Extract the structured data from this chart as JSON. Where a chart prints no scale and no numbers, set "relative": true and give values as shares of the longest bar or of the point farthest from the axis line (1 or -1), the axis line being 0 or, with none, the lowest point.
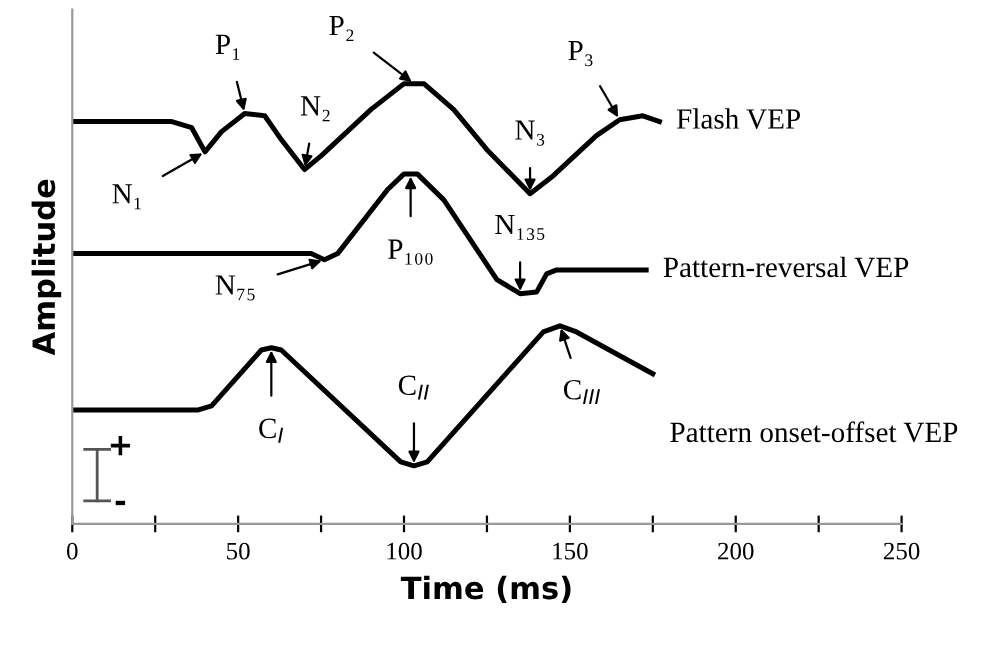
{
  "chart_data": {
    "type": "line",
    "relative": true,
    "xlabel": "Time (ms)",
    "ylabel": "Amplitude",
    "xlim": [
      0,
      250
    ],
    "xticks": [
      0,
      {
        "value": 25,
        "label": null
      },
      50,
      {
        "value": 75,
        "label": null
      },
      100,
      {
        "value": 125,
        "label": null
      },
      150,
      {
        "value": 175,
        "label": null
      },
      200,
      {
        "value": 225,
        "label": null
      },
      250
    ],
    "grid": false,
    "legend": "right",
    "marker": "none",
    "line_style": "solid",
    "series": [
      {
        "name": "Flash VEP",
        "color": "#000000",
        "x": [
          0,
          30,
          36,
          40,
          45,
          52,
          58,
          63,
          70,
          75,
          90,
          100,
          106,
          115,
          125,
          138,
          145,
          158,
          165,
          172,
          177
        ],
        "values": [
          0.914,
          0.914,
          0.9,
          0.845,
          0.891,
          0.932,
          0.927,
          0.873,
          0.805,
          0.836,
          0.941,
          1.0,
          1.0,
          0.941,
          0.85,
          0.75,
          0.791,
          0.882,
          0.918,
          0.927,
          0.914
        ]
      },
      {
        "name": "Pattern-reversal VEP",
        "color": "#000000",
        "x": [
          0,
          72,
          76,
          80,
          95,
          100,
          104,
          112,
          128,
          135,
          140,
          143,
          146,
          173
        ],
        "values": [
          0.614,
          0.614,
          0.6,
          0.614,
          0.759,
          0.795,
          0.795,
          0.736,
          0.555,
          0.523,
          0.527,
          0.568,
          0.577,
          0.577
        ]
      },
      {
        "name": "Pattern onset-offset VEP",
        "color": "#000000",
        "x": [
          0,
          38,
          42,
          57,
          60,
          63,
          99,
          103,
          107,
          142,
          147,
          152,
          175
        ],
        "values": [
          0.259,
          0.259,
          0.268,
          0.395,
          0.4,
          0.395,
          0.141,
          0.132,
          0.141,
          0.436,
          0.45,
          0.436,
          0.341
        ]
      }
    ],
    "annotations": [
      {
        "text": "N₁",
        "x": 40,
        "y": 0.845
      },
      {
        "text": "P₁",
        "x": 52,
        "y": 0.932
      },
      {
        "text": "N₂",
        "x": 70,
        "y": 0.805
      },
      {
        "text": "P₂",
        "x": 103,
        "y": 1.0
      },
      {
        "text": "N₃",
        "x": 138,
        "y": 0.75
      },
      {
        "text": "P₃",
        "x": 165,
        "y": 0.918
      },
      {
        "text": "N₇₅",
        "x": 76,
        "y": 0.6
      },
      {
        "text": "P₁₀₀",
        "x": 102,
        "y": 0.795
      },
      {
        "text": "N₁₃₅",
        "x": 135,
        "y": 0.523
      },
      {
        "text": "C$_{I}$",
        "x": 60,
        "y": 0.4
      },
      {
        "text": "C$_{II}$",
        "x": 103,
        "y": 0.132
      },
      {
        "text": "C$_{III}$",
        "x": 147,
        "y": 0.45
      },
      "+",
      "-"
    ]
  }
}
